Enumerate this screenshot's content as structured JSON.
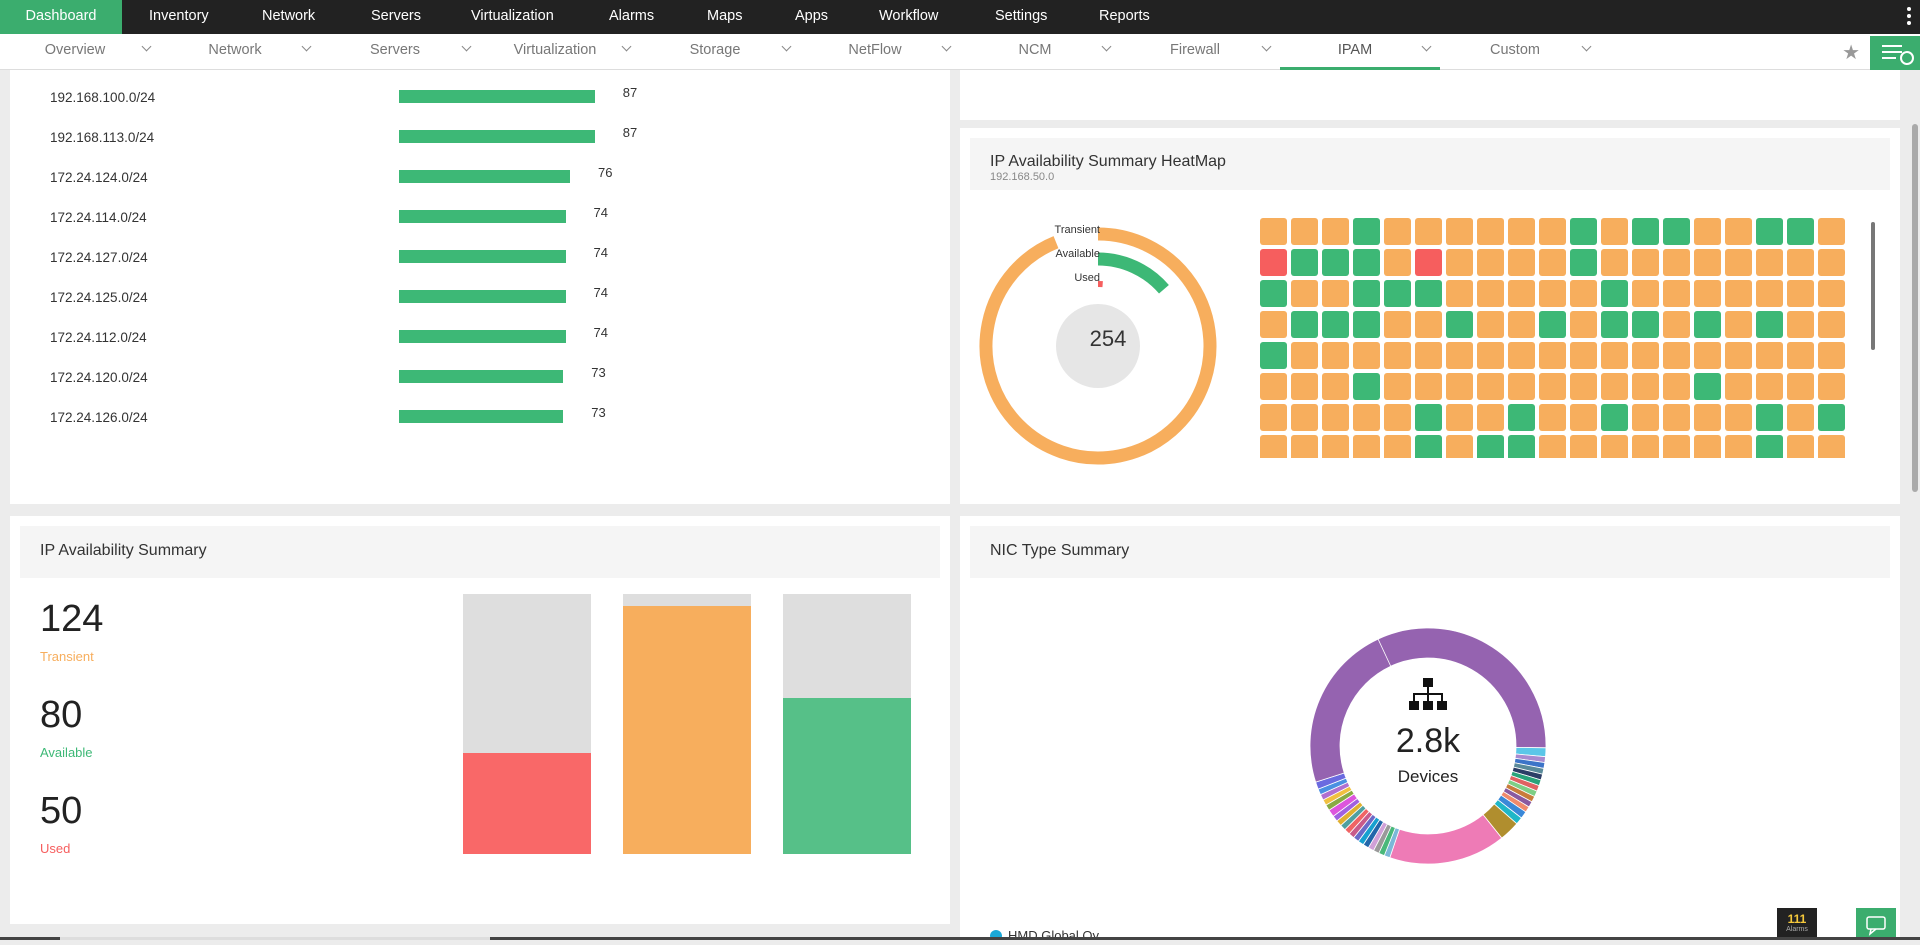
{
  "topnav": {
    "items": [
      "Dashboard",
      "Inventory",
      "Network",
      "Servers",
      "Virtualization",
      "Alarms",
      "Maps",
      "Apps",
      "Workflow",
      "Settings",
      "Reports"
    ],
    "active": "Dashboard"
  },
  "subnav": {
    "tabs": [
      "Overview",
      "Network",
      "Servers",
      "Virtualization",
      "Storage",
      "NetFlow",
      "NCM",
      "Firewall",
      "IPAM",
      "Custom"
    ],
    "active": "IPAM"
  },
  "subnets": {
    "rows": [
      {
        "network": "192.168.100.0/24",
        "value": 87
      },
      {
        "network": "192.168.113.0/24",
        "value": 87
      },
      {
        "network": "172.24.124.0/24",
        "value": 76
      },
      {
        "network": "172.24.114.0/24",
        "value": 74
      },
      {
        "network": "172.24.127.0/24",
        "value": 74
      },
      {
        "network": "172.24.125.0/24",
        "value": 74
      },
      {
        "network": "172.24.112.0/24",
        "value": 74
      },
      {
        "network": "172.24.120.0/24",
        "value": 73
      },
      {
        "network": "172.24.126.0/24",
        "value": 73
      }
    ]
  },
  "heatmap": {
    "title": "IP Availability Summary HeatMap",
    "subnet": "192.168.50.0",
    "total": "254",
    "legend": [
      "Transient",
      "Available",
      "Used"
    ],
    "ring": {
      "transient": 124,
      "available": 80,
      "used": 50,
      "total": 254
    },
    "colors": {
      "transient": "#f7ae5d",
      "available": "#3db876",
      "used": "#f65e5e",
      "empty": "#e6e6e6"
    },
    "grid": [
      "TTTATTTTTTATAATTAAT",
      "UAAATUTTTTATTTTTTTT",
      "ATTAAATTTTTATTTTTTT",
      "TAAATTATTATAATATATT",
      "ATTTTTTTTTTTTTTTTTT",
      "TTTATTTTTTTTTTATTTT",
      "TTTTTATTATTATTTTATAT",
      "TTTTTATAATTTTTTTATTT"
    ]
  },
  "availability": {
    "title": "IP Availability Summary",
    "items": [
      {
        "count": "124",
        "label": "Transient",
        "color": "#f7ae5d"
      },
      {
        "count": "80",
        "label": "Available",
        "color": "#3db876"
      },
      {
        "count": "50",
        "label": "Used",
        "color": "#f65e5e"
      }
    ],
    "bars": [
      {
        "fraction": 0.39,
        "color": "#f96868"
      },
      {
        "fraction": 0.955,
        "color": "#f7ae5d"
      },
      {
        "fraction": 0.6,
        "color": "#56c088"
      }
    ]
  },
  "nic": {
    "title": "NIC Type Summary",
    "center_value": "2.8k",
    "center_label": "Devices",
    "legend_first": "HMD Global Oy"
  },
  "alarms": {
    "count": "111",
    "label": "Alarms"
  }
}
